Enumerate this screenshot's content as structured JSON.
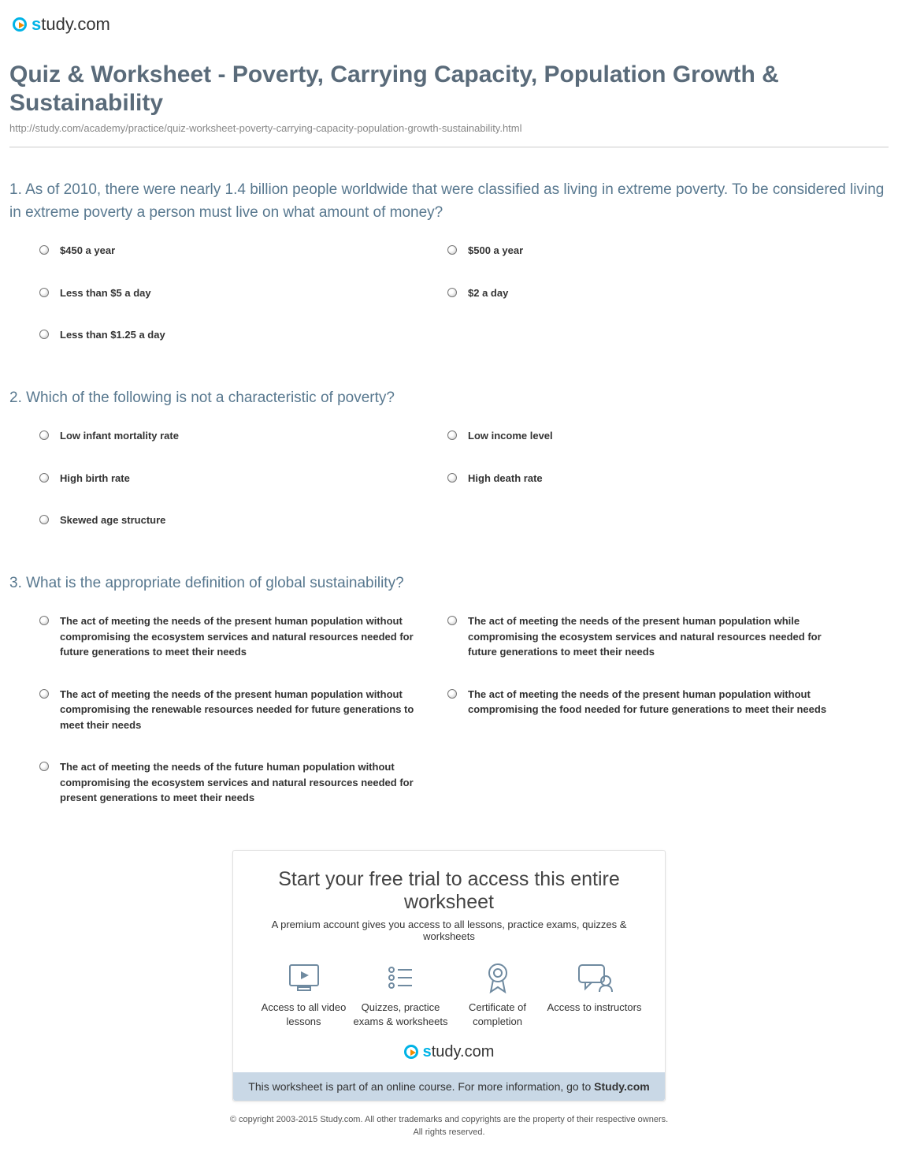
{
  "brand": {
    "name": "study.com"
  },
  "header": {
    "title": "Quiz & Worksheet - Poverty, Carrying Capacity, Population Growth & Sustainability",
    "url": "http://study.com/academy/practice/quiz-worksheet-poverty-carrying-capacity-population-growth-sustainability.html"
  },
  "questions": [
    {
      "number": "1.",
      "text": "As of 2010, there were nearly 1.4 billion people worldwide that were classified as living in extreme poverty. To be considered living in extreme poverty a person must live on what amount of money?",
      "options": [
        "$450 a year",
        "$500 a year",
        "Less than $5 a day",
        "$2 a day",
        "Less than $1.25 a day"
      ]
    },
    {
      "number": "2.",
      "text": "Which of the following is not a characteristic of poverty?",
      "options": [
        "Low infant mortality rate",
        "Low income level",
        "High birth rate",
        "High death rate",
        "Skewed age structure"
      ]
    },
    {
      "number": "3.",
      "text": "What is the appropriate definition of global sustainability?",
      "options": [
        "The act of meeting the needs of the present human population without compromising the ecosystem services and natural resources needed for future generations to meet their needs",
        "The act of meeting the needs of the present human population while compromising the ecosystem services and natural resources needed for future generations to meet their needs",
        "The act of meeting the needs of the present human population without compromising the renewable resources needed for future generations to meet their needs",
        "The act of meeting the needs of the present human population without compromising the food needed for future generations to meet their needs",
        "The act of meeting the needs of the future human population without compromising the ecosystem services and natural resources needed for present generations to meet their needs"
      ]
    }
  ],
  "cta": {
    "title": "Start your free trial to access this entire worksheet",
    "subtitle": "A premium account gives you access to all lessons, practice exams, quizzes & worksheets",
    "features": [
      {
        "icon": "video",
        "label": "Access to all video lessons"
      },
      {
        "icon": "list",
        "label": "Quizzes, practice exams & worksheets"
      },
      {
        "icon": "badge",
        "label": "Certificate of completion"
      },
      {
        "icon": "chat",
        "label": "Access to instructors"
      }
    ],
    "bar_prefix": "This worksheet is part of an online course. For more information, go to ",
    "bar_link": "Study.com"
  },
  "footer": {
    "line1": "© copyright 2003-2015 Study.com. All other trademarks and copyrights are the property of their respective owners.",
    "line2": "All rights reserved."
  },
  "colors": {
    "title": "#5a6b7a",
    "question": "#58788f",
    "accent": "#00b3e6",
    "ctabar": "#c9d8e6"
  }
}
